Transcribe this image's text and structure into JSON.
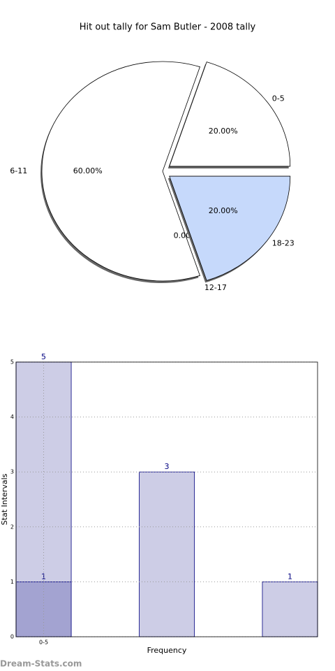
{
  "chart_data": [
    {
      "type": "pie",
      "title": "Hit out tally for Sam Butler - 2008 tally",
      "categories": [
        "0-5",
        "6-11",
        "12-17",
        "18-23"
      ],
      "values": [
        20,
        60,
        0,
        20
      ],
      "value_labels": [
        "20.00%",
        "60.00%",
        "0.00%",
        "20.00%"
      ],
      "colors": [
        "#ffffff",
        "#ffffff",
        "#ffffff",
        "#c6d9fb"
      ]
    },
    {
      "type": "bar",
      "xlabel": "Frequency",
      "ylabel": "Stat Intervals",
      "categories": [
        "0-5",
        null,
        null
      ],
      "series": [
        {
          "color": "#cdcde6",
          "values": [
            5,
            3,
            1
          ]
        },
        {
          "color": "#a3a3d1",
          "values": [
            1,
            null,
            null
          ]
        }
      ],
      "ylim": [
        0,
        5
      ],
      "yticks": [
        0,
        1,
        2,
        3,
        4,
        5
      ],
      "grid": true
    }
  ],
  "watermark": "Dream-Stats.com"
}
